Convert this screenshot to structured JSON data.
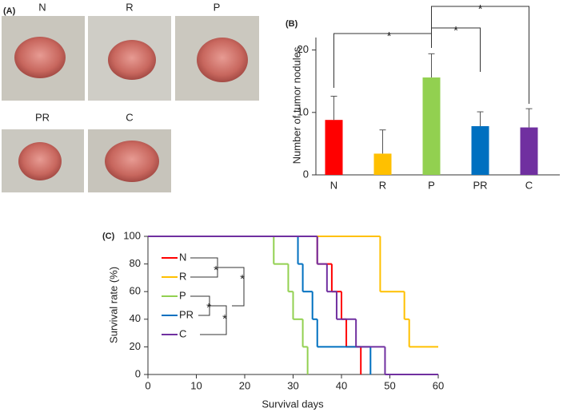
{
  "photos": {
    "panel_label": "(A)",
    "labels": [
      "N",
      "R",
      "P",
      "PR",
      "C"
    ]
  },
  "chart_data": [
    {
      "type": "bar",
      "panel_label": "(B)",
      "y_label": "Number of tumor nodules",
      "categories": [
        "N",
        "R",
        "P",
        "PR",
        "C"
      ],
      "values": [
        8.8,
        3.4,
        15.6,
        7.8,
        7.6
      ],
      "errors": [
        3.8,
        3.8,
        3.8,
        2.3,
        3.0
      ],
      "colors": [
        "#ff0000",
        "#ffc000",
        "#92d050",
        "#0070c0",
        "#7030a0"
      ],
      "ylim": [
        0,
        22
      ],
      "yticks": [
        0,
        10,
        20
      ],
      "annotations": [
        "*",
        "*",
        "*"
      ]
    },
    {
      "type": "step",
      "panel_label": "(C)",
      "x_label": "Survival days",
      "y_label": "Survival rate (%)",
      "xlim": [
        0,
        60
      ],
      "xticks": [
        0,
        10,
        20,
        30,
        40,
        50,
        60
      ],
      "ylim": [
        0,
        100
      ],
      "yticks": [
        0,
        20,
        40,
        60,
        80,
        100
      ],
      "series": [
        {
          "name": "N",
          "color": "#ff0000",
          "x": [
            0,
            35,
            38,
            40,
            41,
            44
          ],
          "values": [
            100,
            80,
            60,
            40,
            20,
            0
          ]
        },
        {
          "name": "R",
          "color": "#ffc000",
          "x": [
            0,
            48,
            53,
            54,
            60
          ],
          "values": [
            100,
            60,
            40,
            20,
            20
          ]
        },
        {
          "name": "P",
          "color": "#92d050",
          "x": [
            0,
            26,
            29,
            30,
            32,
            33
          ],
          "values": [
            100,
            80,
            60,
            40,
            20,
            0
          ]
        },
        {
          "name": "PR",
          "color": "#0070c0",
          "x": [
            0,
            31,
            32,
            34,
            35,
            46
          ],
          "values": [
            100,
            80,
            60,
            40,
            20,
            0
          ]
        },
        {
          "name": "C",
          "color": "#7030a0",
          "x": [
            0,
            35,
            37,
            39,
            43,
            49,
            60
          ],
          "values": [
            100,
            80,
            60,
            40,
            20,
            0,
            0
          ]
        }
      ],
      "annotations": [
        "*",
        "*",
        "*",
        "*"
      ]
    }
  ]
}
